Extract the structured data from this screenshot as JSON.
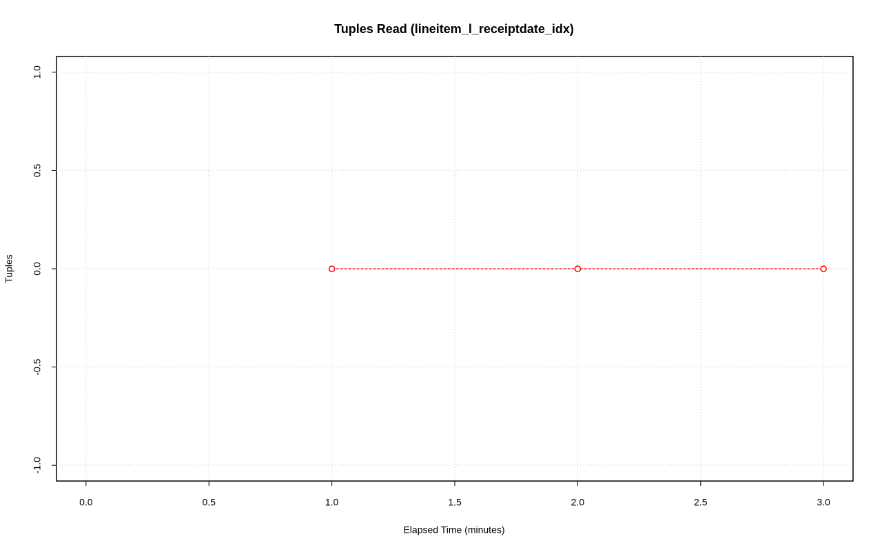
{
  "chart_data": {
    "type": "line",
    "title": "Tuples Read (lineitem_l_receiptdate_idx)",
    "x_label": "Elapsed Time (minutes)",
    "y_label": "Tuples",
    "x": [
      1,
      2,
      3
    ],
    "values": [
      0,
      0,
      0
    ],
    "color": "#ff0000",
    "line_style": "dashed",
    "xlim": [
      -0.12,
      3.12
    ],
    "ylim": [
      -1.08,
      1.08
    ],
    "xticks": [
      {
        "value": 0,
        "label": "0.0"
      },
      0.5,
      {
        "value": 1,
        "label": "1.0"
      },
      1.5,
      {
        "value": 2,
        "label": "2.0"
      },
      2.5,
      {
        "value": 3,
        "label": "3.0"
      }
    ],
    "yticks": [
      {
        "value": -1,
        "label": "-1.0"
      },
      -0.5,
      {
        "value": 0,
        "label": "0.0"
      },
      0.5,
      {
        "value": 1,
        "label": "1.0"
      }
    ],
    "grid": true
  }
}
